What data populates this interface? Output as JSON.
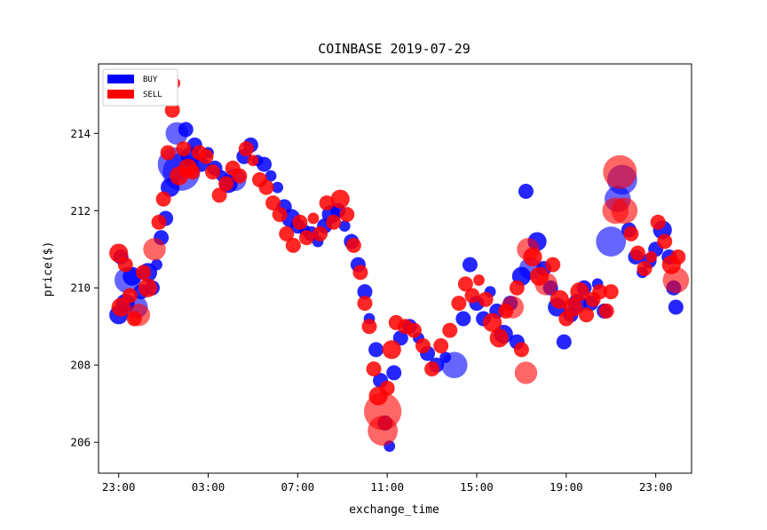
{
  "chart_data": {
    "type": "scatter",
    "title": "COINBASE 2019-07-29",
    "xlabel": "exchange_time",
    "ylabel": "price($)",
    "x_unit": "hour",
    "x_ticks": [
      "23:00",
      "03:00",
      "07:00",
      "11:00",
      "15:00",
      "19:00",
      "23:00"
    ],
    "x_tick_values": [
      23,
      27,
      31,
      35,
      39,
      43,
      47
    ],
    "xlim": [
      22.1,
      48.6
    ],
    "y_ticks": [
      "206",
      "208",
      "210",
      "212",
      "214"
    ],
    "y_tick_values": [
      206,
      208,
      210,
      212,
      214
    ],
    "ylim": [
      205.2,
      215.8
    ],
    "legend": {
      "position": "top-left"
    },
    "grid": false,
    "series": [
      {
        "name": "BUY",
        "color": "#0000ff",
        "points": [
          {
            "x": 23.0,
            "y": 209.3,
            "size": 4
          },
          {
            "x": 23.1,
            "y": 210.8,
            "size": 3
          },
          {
            "x": 23.3,
            "y": 209.6,
            "size": 4
          },
          {
            "x": 23.4,
            "y": 210.2,
            "size": 6
          },
          {
            "x": 23.6,
            "y": 210.3,
            "size": 4
          },
          {
            "x": 23.8,
            "y": 209.5,
            "size": 5
          },
          {
            "x": 24.0,
            "y": 209.9,
            "size": 3
          },
          {
            "x": 24.3,
            "y": 210.4,
            "size": 4
          },
          {
            "x": 24.5,
            "y": 210.0,
            "size": 3
          },
          {
            "x": 24.7,
            "y": 210.6,
            "size": 2
          },
          {
            "x": 24.9,
            "y": 211.3,
            "size": 3
          },
          {
            "x": 25.1,
            "y": 211.8,
            "size": 3
          },
          {
            "x": 25.3,
            "y": 212.6,
            "size": 4
          },
          {
            "x": 25.5,
            "y": 213.2,
            "size": 8
          },
          {
            "x": 25.6,
            "y": 214.0,
            "size": 5
          },
          {
            "x": 25.8,
            "y": 213.0,
            "size": 9
          },
          {
            "x": 26.0,
            "y": 214.1,
            "size": 3
          },
          {
            "x": 26.2,
            "y": 213.4,
            "size": 4
          },
          {
            "x": 26.4,
            "y": 213.7,
            "size": 3
          },
          {
            "x": 26.7,
            "y": 213.2,
            "size": 3
          },
          {
            "x": 27.0,
            "y": 213.5,
            "size": 2
          },
          {
            "x": 27.3,
            "y": 213.1,
            "size": 3
          },
          {
            "x": 27.6,
            "y": 212.9,
            "size": 2
          },
          {
            "x": 27.9,
            "y": 212.7,
            "size": 4
          },
          {
            "x": 28.2,
            "y": 212.8,
            "size": 5
          },
          {
            "x": 28.6,
            "y": 213.4,
            "size": 3
          },
          {
            "x": 28.9,
            "y": 213.7,
            "size": 3
          },
          {
            "x": 29.2,
            "y": 213.3,
            "size": 2
          },
          {
            "x": 29.5,
            "y": 213.2,
            "size": 3
          },
          {
            "x": 29.8,
            "y": 212.9,
            "size": 2
          },
          {
            "x": 30.1,
            "y": 212.6,
            "size": 2
          },
          {
            "x": 30.4,
            "y": 212.1,
            "size": 3
          },
          {
            "x": 30.7,
            "y": 211.8,
            "size": 4
          },
          {
            "x": 31.0,
            "y": 211.6,
            "size": 3
          },
          {
            "x": 31.3,
            "y": 211.5,
            "size": 2
          },
          {
            "x": 31.6,
            "y": 211.4,
            "size": 3
          },
          {
            "x": 31.9,
            "y": 211.2,
            "size": 2
          },
          {
            "x": 32.2,
            "y": 211.6,
            "size": 3
          },
          {
            "x": 32.5,
            "y": 211.9,
            "size": 4
          },
          {
            "x": 32.8,
            "y": 212.0,
            "size": 3
          },
          {
            "x": 33.1,
            "y": 211.6,
            "size": 2
          },
          {
            "x": 33.4,
            "y": 211.2,
            "size": 3
          },
          {
            "x": 33.7,
            "y": 210.6,
            "size": 3
          },
          {
            "x": 34.0,
            "y": 209.9,
            "size": 3
          },
          {
            "x": 34.2,
            "y": 209.2,
            "size": 2
          },
          {
            "x": 34.5,
            "y": 208.4,
            "size": 3
          },
          {
            "x": 34.7,
            "y": 207.6,
            "size": 3
          },
          {
            "x": 34.9,
            "y": 206.5,
            "size": 3
          },
          {
            "x": 35.1,
            "y": 205.9,
            "size": 2
          },
          {
            "x": 35.3,
            "y": 207.8,
            "size": 3
          },
          {
            "x": 35.6,
            "y": 208.7,
            "size": 3
          },
          {
            "x": 36.0,
            "y": 209.0,
            "size": 3
          },
          {
            "x": 36.4,
            "y": 208.7,
            "size": 2
          },
          {
            "x": 36.8,
            "y": 208.3,
            "size": 3
          },
          {
            "x": 37.2,
            "y": 208.0,
            "size": 3
          },
          {
            "x": 37.6,
            "y": 208.2,
            "size": 2
          },
          {
            "x": 38.0,
            "y": 208.0,
            "size": 6
          },
          {
            "x": 38.4,
            "y": 209.2,
            "size": 3
          },
          {
            "x": 38.7,
            "y": 210.6,
            "size": 3
          },
          {
            "x": 39.0,
            "y": 209.6,
            "size": 3
          },
          {
            "x": 39.3,
            "y": 209.2,
            "size": 3
          },
          {
            "x": 39.6,
            "y": 209.9,
            "size": 2
          },
          {
            "x": 39.9,
            "y": 209.4,
            "size": 3
          },
          {
            "x": 40.2,
            "y": 208.8,
            "size": 4
          },
          {
            "x": 40.5,
            "y": 209.6,
            "size": 3
          },
          {
            "x": 40.8,
            "y": 208.6,
            "size": 3
          },
          {
            "x": 41.0,
            "y": 210.3,
            "size": 4
          },
          {
            "x": 41.2,
            "y": 212.5,
            "size": 3
          },
          {
            "x": 41.4,
            "y": 210.5,
            "size": 5
          },
          {
            "x": 41.7,
            "y": 211.2,
            "size": 4
          },
          {
            "x": 42.0,
            "y": 210.5,
            "size": 3
          },
          {
            "x": 42.3,
            "y": 210.0,
            "size": 3
          },
          {
            "x": 42.6,
            "y": 209.5,
            "size": 4
          },
          {
            "x": 42.9,
            "y": 208.6,
            "size": 3
          },
          {
            "x": 43.2,
            "y": 209.3,
            "size": 3
          },
          {
            "x": 43.5,
            "y": 209.6,
            "size": 4
          },
          {
            "x": 43.8,
            "y": 210.0,
            "size": 3
          },
          {
            "x": 44.1,
            "y": 209.6,
            "size": 3
          },
          {
            "x": 44.4,
            "y": 210.1,
            "size": 2
          },
          {
            "x": 44.7,
            "y": 209.4,
            "size": 3
          },
          {
            "x": 45.0,
            "y": 211.2,
            "size": 7
          },
          {
            "x": 45.3,
            "y": 212.3,
            "size": 6
          },
          {
            "x": 45.5,
            "y": 212.8,
            "size": 7
          },
          {
            "x": 45.8,
            "y": 211.5,
            "size": 3
          },
          {
            "x": 46.1,
            "y": 210.8,
            "size": 3
          },
          {
            "x": 46.4,
            "y": 210.4,
            "size": 2
          },
          {
            "x": 46.7,
            "y": 210.7,
            "size": 3
          },
          {
            "x": 47.0,
            "y": 211.0,
            "size": 3
          },
          {
            "x": 47.3,
            "y": 211.5,
            "size": 4
          },
          {
            "x": 47.6,
            "y": 210.8,
            "size": 3
          },
          {
            "x": 47.8,
            "y": 210.0,
            "size": 3
          },
          {
            "x": 47.9,
            "y": 209.5,
            "size": 3
          }
        ]
      },
      {
        "name": "SELL",
        "color": "#ff0000",
        "points": [
          {
            "x": 23.0,
            "y": 210.9,
            "size": 4
          },
          {
            "x": 23.1,
            "y": 209.5,
            "size": 4
          },
          {
            "x": 23.3,
            "y": 210.6,
            "size": 3
          },
          {
            "x": 23.5,
            "y": 209.8,
            "size": 3
          },
          {
            "x": 23.7,
            "y": 209.2,
            "size": 3
          },
          {
            "x": 23.9,
            "y": 209.3,
            "size": 5
          },
          {
            "x": 24.1,
            "y": 210.4,
            "size": 3
          },
          {
            "x": 24.3,
            "y": 210.0,
            "size": 4
          },
          {
            "x": 24.6,
            "y": 211.0,
            "size": 5
          },
          {
            "x": 24.8,
            "y": 211.7,
            "size": 3
          },
          {
            "x": 25.0,
            "y": 212.3,
            "size": 3
          },
          {
            "x": 25.2,
            "y": 213.5,
            "size": 3
          },
          {
            "x": 25.4,
            "y": 214.6,
            "size": 3
          },
          {
            "x": 25.5,
            "y": 215.3,
            "size": 2
          },
          {
            "x": 25.7,
            "y": 212.9,
            "size": 4
          },
          {
            "x": 25.9,
            "y": 213.6,
            "size": 3
          },
          {
            "x": 26.1,
            "y": 213.1,
            "size": 4
          },
          {
            "x": 26.3,
            "y": 213.0,
            "size": 3
          },
          {
            "x": 26.6,
            "y": 213.5,
            "size": 3
          },
          {
            "x": 26.9,
            "y": 213.4,
            "size": 3
          },
          {
            "x": 27.2,
            "y": 213.0,
            "size": 3
          },
          {
            "x": 27.5,
            "y": 212.4,
            "size": 3
          },
          {
            "x": 27.8,
            "y": 212.7,
            "size": 3
          },
          {
            "x": 28.1,
            "y": 213.1,
            "size": 3
          },
          {
            "x": 28.4,
            "y": 212.9,
            "size": 3
          },
          {
            "x": 28.7,
            "y": 213.6,
            "size": 3
          },
          {
            "x": 29.0,
            "y": 213.3,
            "size": 2
          },
          {
            "x": 29.3,
            "y": 212.8,
            "size": 3
          },
          {
            "x": 29.6,
            "y": 212.6,
            "size": 3
          },
          {
            "x": 29.9,
            "y": 212.2,
            "size": 3
          },
          {
            "x": 30.2,
            "y": 211.9,
            "size": 3
          },
          {
            "x": 30.5,
            "y": 211.4,
            "size": 3
          },
          {
            "x": 30.8,
            "y": 211.1,
            "size": 3
          },
          {
            "x": 31.1,
            "y": 211.7,
            "size": 3
          },
          {
            "x": 31.4,
            "y": 211.3,
            "size": 3
          },
          {
            "x": 31.7,
            "y": 211.8,
            "size": 2
          },
          {
            "x": 32.0,
            "y": 211.4,
            "size": 3
          },
          {
            "x": 32.3,
            "y": 212.2,
            "size": 3
          },
          {
            "x": 32.6,
            "y": 211.7,
            "size": 3
          },
          {
            "x": 32.9,
            "y": 212.3,
            "size": 4
          },
          {
            "x": 33.2,
            "y": 211.9,
            "size": 3
          },
          {
            "x": 33.5,
            "y": 211.1,
            "size": 3
          },
          {
            "x": 33.8,
            "y": 210.4,
            "size": 3
          },
          {
            "x": 34.0,
            "y": 209.6,
            "size": 3
          },
          {
            "x": 34.2,
            "y": 209.0,
            "size": 3
          },
          {
            "x": 34.4,
            "y": 207.9,
            "size": 3
          },
          {
            "x": 34.6,
            "y": 207.2,
            "size": 4
          },
          {
            "x": 34.8,
            "y": 206.8,
            "size": 9
          },
          {
            "x": 34.8,
            "y": 206.3,
            "size": 7
          },
          {
            "x": 35.0,
            "y": 207.4,
            "size": 3
          },
          {
            "x": 35.2,
            "y": 208.4,
            "size": 4
          },
          {
            "x": 35.4,
            "y": 209.1,
            "size": 3
          },
          {
            "x": 35.8,
            "y": 209.0,
            "size": 3
          },
          {
            "x": 36.2,
            "y": 208.9,
            "size": 3
          },
          {
            "x": 36.6,
            "y": 208.5,
            "size": 3
          },
          {
            "x": 37.0,
            "y": 207.9,
            "size": 3
          },
          {
            "x": 37.4,
            "y": 208.5,
            "size": 3
          },
          {
            "x": 37.8,
            "y": 208.9,
            "size": 3
          },
          {
            "x": 38.2,
            "y": 209.6,
            "size": 3
          },
          {
            "x": 38.5,
            "y": 210.1,
            "size": 3
          },
          {
            "x": 38.8,
            "y": 209.8,
            "size": 3
          },
          {
            "x": 39.1,
            "y": 210.2,
            "size": 2
          },
          {
            "x": 39.4,
            "y": 209.7,
            "size": 3
          },
          {
            "x": 39.7,
            "y": 209.1,
            "size": 4
          },
          {
            "x": 40.0,
            "y": 208.7,
            "size": 4
          },
          {
            "x": 40.3,
            "y": 209.4,
            "size": 3
          },
          {
            "x": 40.6,
            "y": 209.5,
            "size": 5
          },
          {
            "x": 40.8,
            "y": 210.0,
            "size": 3
          },
          {
            "x": 41.0,
            "y": 208.4,
            "size": 3
          },
          {
            "x": 41.2,
            "y": 207.8,
            "size": 5
          },
          {
            "x": 41.3,
            "y": 211.0,
            "size": 5
          },
          {
            "x": 41.5,
            "y": 210.8,
            "size": 4
          },
          {
            "x": 41.8,
            "y": 210.3,
            "size": 4
          },
          {
            "x": 42.1,
            "y": 210.1,
            "size": 5
          },
          {
            "x": 42.4,
            "y": 210.6,
            "size": 3
          },
          {
            "x": 42.7,
            "y": 209.7,
            "size": 4
          },
          {
            "x": 43.0,
            "y": 209.2,
            "size": 3
          },
          {
            "x": 43.3,
            "y": 209.5,
            "size": 4
          },
          {
            "x": 43.6,
            "y": 209.9,
            "size": 4
          },
          {
            "x": 43.9,
            "y": 209.3,
            "size": 3
          },
          {
            "x": 44.2,
            "y": 209.7,
            "size": 3
          },
          {
            "x": 44.5,
            "y": 209.9,
            "size": 3
          },
          {
            "x": 44.8,
            "y": 209.4,
            "size": 3
          },
          {
            "x": 45.0,
            "y": 209.9,
            "size": 3
          },
          {
            "x": 45.2,
            "y": 212.0,
            "size": 6
          },
          {
            "x": 45.4,
            "y": 213.0,
            "size": 8
          },
          {
            "x": 45.6,
            "y": 212.0,
            "size": 6
          },
          {
            "x": 45.9,
            "y": 211.4,
            "size": 3
          },
          {
            "x": 46.2,
            "y": 210.9,
            "size": 3
          },
          {
            "x": 46.5,
            "y": 210.5,
            "size": 3
          },
          {
            "x": 46.8,
            "y": 210.8,
            "size": 2
          },
          {
            "x": 47.1,
            "y": 211.7,
            "size": 3
          },
          {
            "x": 47.4,
            "y": 211.2,
            "size": 3
          },
          {
            "x": 47.7,
            "y": 210.6,
            "size": 4
          },
          {
            "x": 47.9,
            "y": 210.2,
            "size": 6
          },
          {
            "x": 48.0,
            "y": 210.8,
            "size": 3
          }
        ]
      }
    ]
  }
}
